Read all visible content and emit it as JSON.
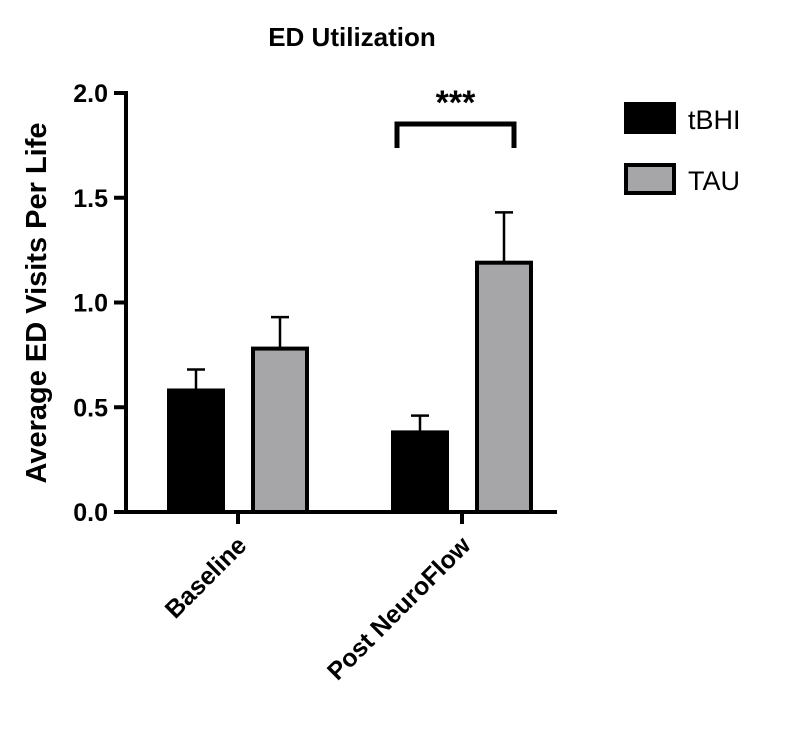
{
  "chart_data": {
    "type": "bar",
    "title": "ED Utilization",
    "xlabel": "",
    "ylabel": "Average ED Visits Per Life",
    "ylim": [
      0,
      2.0
    ],
    "yticks": [
      "0.0",
      "0.5",
      "1.0",
      "1.5",
      "2.0"
    ],
    "categories": [
      "Baseline",
      "Post NeuroFlow"
    ],
    "series": [
      {
        "name": "tBHI",
        "values": [
          0.58,
          0.38
        ],
        "errors": [
          0.1,
          0.08
        ],
        "color": "#000000"
      },
      {
        "name": "TAU",
        "values": [
          0.78,
          1.19
        ],
        "errors": [
          0.15,
          0.24
        ],
        "color": "#a6a6a8"
      }
    ],
    "annotations": [
      {
        "text": "***",
        "category": "Post NeuroFlow",
        "type": "significance-bracket"
      }
    ],
    "legend": "right",
    "grid": false
  }
}
